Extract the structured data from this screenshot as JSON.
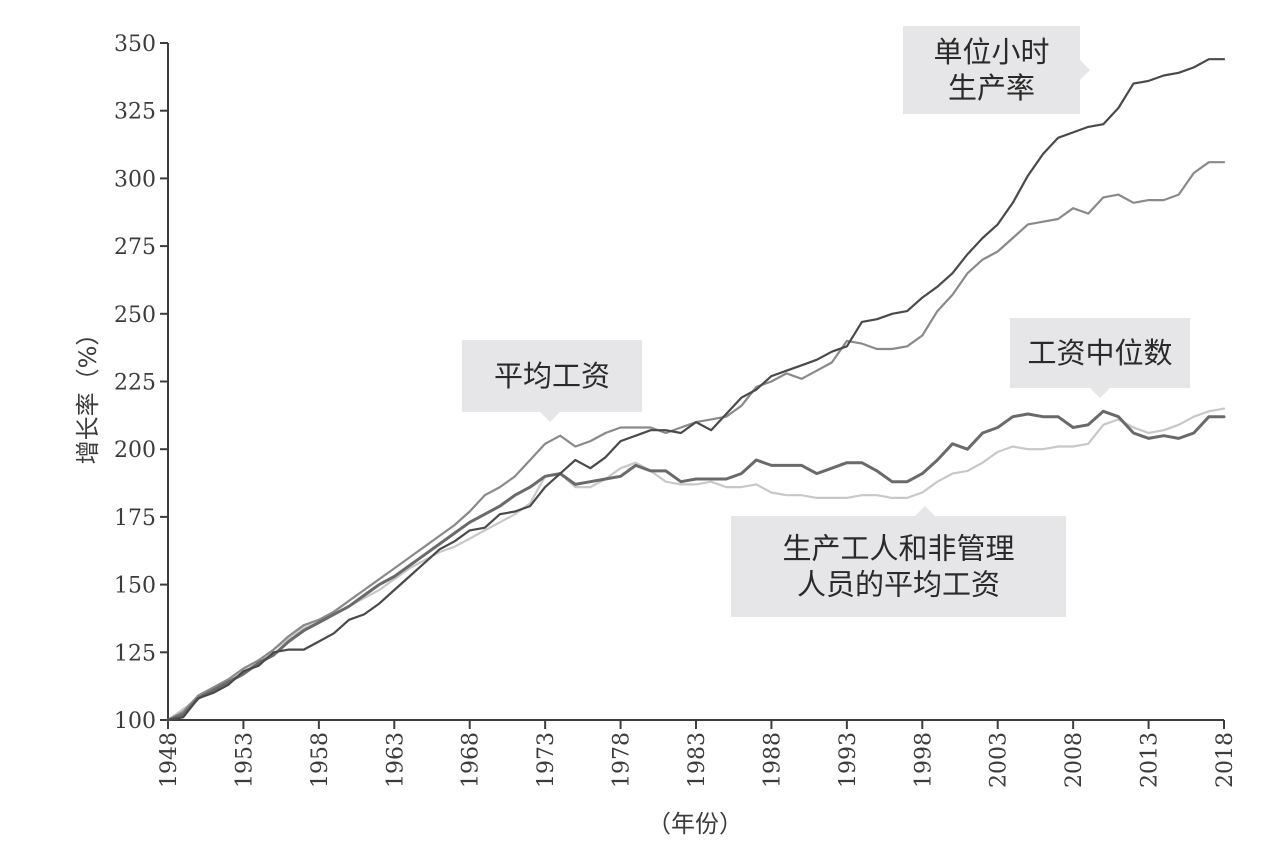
{
  "chart_data": {
    "type": "line",
    "title": "",
    "xlabel": "（年份）",
    "ylabel": "增长率（%）",
    "xlim": [
      1948,
      2018
    ],
    "ylim": [
      100,
      350
    ],
    "x_ticks": [
      1948,
      1953,
      1958,
      1963,
      1968,
      1973,
      1978,
      1983,
      1988,
      1993,
      1998,
      2003,
      2008,
      2013,
      2018
    ],
    "y_ticks": [
      100,
      125,
      150,
      175,
      200,
      225,
      250,
      275,
      300,
      325,
      350
    ],
    "grid": false,
    "legend": "none",
    "annotations": [
      {
        "lines": [
          "单位小时",
          "生产率"
        ],
        "series": "productivity"
      },
      {
        "lines": [
          "平均工资"
        ],
        "series": "avg_wage"
      },
      {
        "lines": [
          "工资中位数"
        ],
        "series": "median_wage"
      },
      {
        "lines": [
          "生产工人和非管理",
          "人员的平均工资"
        ],
        "series": "production_wage"
      }
    ],
    "series": [
      {
        "id": "productivity",
        "color": "#4a4a4a",
        "points": [
          [
            1948,
            100
          ],
          [
            1949,
            101
          ],
          [
            1950,
            108
          ],
          [
            1951,
            110
          ],
          [
            1952,
            113
          ],
          [
            1953,
            118
          ],
          [
            1954,
            120
          ],
          [
            1955,
            125
          ],
          [
            1956,
            126
          ],
          [
            1957,
            126
          ],
          [
            1958,
            129
          ],
          [
            1959,
            132
          ],
          [
            1960,
            137
          ],
          [
            1961,
            139
          ],
          [
            1962,
            143
          ],
          [
            1963,
            148
          ],
          [
            1964,
            153
          ],
          [
            1965,
            158
          ],
          [
            1966,
            163
          ],
          [
            1967,
            166
          ],
          [
            1968,
            170
          ],
          [
            1969,
            171
          ],
          [
            1970,
            176
          ],
          [
            1971,
            177
          ],
          [
            1972,
            179
          ],
          [
            1973,
            186
          ],
          [
            1974,
            191
          ],
          [
            1975,
            196
          ],
          [
            1976,
            193
          ],
          [
            1977,
            197
          ],
          [
            1978,
            203
          ],
          [
            1979,
            205
          ],
          [
            1980,
            207
          ],
          [
            1981,
            207
          ],
          [
            1982,
            206
          ],
          [
            1983,
            210
          ],
          [
            1984,
            207
          ],
          [
            1985,
            213
          ],
          [
            1986,
            219
          ],
          [
            1987,
            222
          ],
          [
            1988,
            227
          ],
          [
            1989,
            229
          ],
          [
            1990,
            231
          ],
          [
            1991,
            233
          ],
          [
            1992,
            236
          ],
          [
            1993,
            238
          ],
          [
            1994,
            247
          ],
          [
            1995,
            248
          ],
          [
            1996,
            250
          ],
          [
            1997,
            251
          ],
          [
            1998,
            256
          ],
          [
            1999,
            260
          ],
          [
            2000,
            265
          ],
          [
            2001,
            272
          ],
          [
            2002,
            278
          ],
          [
            2003,
            283
          ],
          [
            2004,
            291
          ],
          [
            2005,
            301
          ],
          [
            2006,
            309
          ],
          [
            2007,
            315
          ],
          [
            2008,
            317
          ],
          [
            2009,
            319
          ],
          [
            2010,
            320
          ],
          [
            2011,
            326
          ],
          [
            2012,
            335
          ],
          [
            2013,
            336
          ],
          [
            2014,
            338
          ],
          [
            2015,
            339
          ],
          [
            2016,
            341
          ],
          [
            2017,
            344
          ],
          [
            2018,
            344
          ]
        ]
      },
      {
        "id": "avg_wage",
        "color": "#8a8a8a",
        "points": [
          [
            1948,
            100
          ],
          [
            1949,
            103
          ],
          [
            1950,
            109
          ],
          [
            1951,
            112
          ],
          [
            1952,
            115
          ],
          [
            1953,
            119
          ],
          [
            1954,
            122
          ],
          [
            1955,
            126
          ],
          [
            1956,
            131
          ],
          [
            1957,
            135
          ],
          [
            1958,
            137
          ],
          [
            1959,
            140
          ],
          [
            1960,
            144
          ],
          [
            1961,
            148
          ],
          [
            1962,
            152
          ],
          [
            1963,
            156
          ],
          [
            1964,
            160
          ],
          [
            1965,
            164
          ],
          [
            1966,
            168
          ],
          [
            1967,
            172
          ],
          [
            1968,
            177
          ],
          [
            1969,
            183
          ],
          [
            1970,
            186
          ],
          [
            1971,
            190
          ],
          [
            1972,
            196
          ],
          [
            1973,
            202
          ],
          [
            1974,
            205
          ],
          [
            1975,
            201
          ],
          [
            1976,
            203
          ],
          [
            1977,
            206
          ],
          [
            1978,
            208
          ],
          [
            1979,
            208
          ],
          [
            1980,
            208
          ],
          [
            1981,
            206
          ],
          [
            1982,
            208
          ],
          [
            1983,
            210
          ],
          [
            1984,
            211
          ],
          [
            1985,
            212
          ],
          [
            1986,
            216
          ],
          [
            1987,
            223
          ],
          [
            1988,
            225
          ],
          [
            1989,
            228
          ],
          [
            1990,
            226
          ],
          [
            1991,
            229
          ],
          [
            1992,
            232
          ],
          [
            1993,
            240
          ],
          [
            1994,
            239
          ],
          [
            1995,
            237
          ],
          [
            1996,
            237
          ],
          [
            1997,
            238
          ],
          [
            1998,
            242
          ],
          [
            1999,
            251
          ],
          [
            2000,
            257
          ],
          [
            2001,
            265
          ],
          [
            2002,
            270
          ],
          [
            2003,
            273
          ],
          [
            2004,
            278
          ],
          [
            2005,
            283
          ],
          [
            2006,
            284
          ],
          [
            2007,
            285
          ],
          [
            2008,
            289
          ],
          [
            2009,
            287
          ],
          [
            2010,
            293
          ],
          [
            2011,
            294
          ],
          [
            2012,
            291
          ],
          [
            2013,
            292
          ],
          [
            2014,
            292
          ],
          [
            2015,
            294
          ],
          [
            2016,
            302
          ],
          [
            2017,
            306
          ],
          [
            2018,
            306
          ]
        ]
      },
      {
        "id": "median_wage",
        "color": "#6a6a6a",
        "points": [
          [
            1948,
            100
          ],
          [
            1949,
            102
          ],
          [
            1950,
            108
          ],
          [
            1951,
            111
          ],
          [
            1952,
            114
          ],
          [
            1953,
            117
          ],
          [
            1954,
            121
          ],
          [
            1955,
            124
          ],
          [
            1956,
            129
          ],
          [
            1957,
            133
          ],
          [
            1958,
            136
          ],
          [
            1959,
            139
          ],
          [
            1960,
            142
          ],
          [
            1961,
            146
          ],
          [
            1962,
            150
          ],
          [
            1963,
            153
          ],
          [
            1964,
            157
          ],
          [
            1965,
            161
          ],
          [
            1966,
            165
          ],
          [
            1967,
            169
          ],
          [
            1968,
            173
          ],
          [
            1969,
            176
          ],
          [
            1970,
            179
          ],
          [
            1971,
            183
          ],
          [
            1972,
            186
          ],
          [
            1973,
            190
          ],
          [
            1974,
            191
          ],
          [
            1975,
            187
          ],
          [
            1976,
            188
          ],
          [
            1977,
            189
          ],
          [
            1978,
            190
          ],
          [
            1979,
            194
          ],
          [
            1980,
            192
          ],
          [
            1981,
            192
          ],
          [
            1982,
            188
          ],
          [
            1983,
            189
          ],
          [
            1984,
            189
          ],
          [
            1985,
            189
          ],
          [
            1986,
            191
          ],
          [
            1987,
            196
          ],
          [
            1988,
            194
          ],
          [
            1989,
            194
          ],
          [
            1990,
            194
          ],
          [
            1991,
            191
          ],
          [
            1992,
            193
          ],
          [
            1993,
            195
          ],
          [
            1994,
            195
          ],
          [
            1995,
            192
          ],
          [
            1996,
            188
          ],
          [
            1997,
            188
          ],
          [
            1998,
            191
          ],
          [
            1999,
            196
          ],
          [
            2000,
            202
          ],
          [
            2001,
            200
          ],
          [
            2002,
            206
          ],
          [
            2003,
            208
          ],
          [
            2004,
            212
          ],
          [
            2005,
            213
          ],
          [
            2006,
            212
          ],
          [
            2007,
            212
          ],
          [
            2008,
            208
          ],
          [
            2009,
            209
          ],
          [
            2010,
            214
          ],
          [
            2011,
            212
          ],
          [
            2012,
            206
          ],
          [
            2013,
            204
          ],
          [
            2014,
            205
          ],
          [
            2015,
            204
          ],
          [
            2016,
            206
          ],
          [
            2017,
            212
          ],
          [
            2018,
            212
          ]
        ]
      },
      {
        "id": "production_wage",
        "color": "#c8c8c8",
        "points": [
          [
            1948,
            100
          ],
          [
            1949,
            104
          ],
          [
            1950,
            108
          ],
          [
            1951,
            111
          ],
          [
            1952,
            114
          ],
          [
            1953,
            118
          ],
          [
            1954,
            121
          ],
          [
            1955,
            126
          ],
          [
            1956,
            130
          ],
          [
            1957,
            134
          ],
          [
            1958,
            136
          ],
          [
            1959,
            139
          ],
          [
            1960,
            142
          ],
          [
            1961,
            145
          ],
          [
            1962,
            148
          ],
          [
            1963,
            152
          ],
          [
            1964,
            156
          ],
          [
            1965,
            159
          ],
          [
            1966,
            162
          ],
          [
            1967,
            164
          ],
          [
            1968,
            167
          ],
          [
            1969,
            170
          ],
          [
            1970,
            173
          ],
          [
            1971,
            176
          ],
          [
            1972,
            180
          ],
          [
            1973,
            190
          ],
          [
            1974,
            191
          ],
          [
            1975,
            186
          ],
          [
            1976,
            186
          ],
          [
            1977,
            189
          ],
          [
            1978,
            193
          ],
          [
            1979,
            195
          ],
          [
            1980,
            192
          ],
          [
            1981,
            188
          ],
          [
            1982,
            187
          ],
          [
            1983,
            187
          ],
          [
            1984,
            188
          ],
          [
            1985,
            186
          ],
          [
            1986,
            186
          ],
          [
            1987,
            187
          ],
          [
            1988,
            184
          ],
          [
            1989,
            183
          ],
          [
            1990,
            183
          ],
          [
            1991,
            182
          ],
          [
            1992,
            182
          ],
          [
            1993,
            182
          ],
          [
            1994,
            183
          ],
          [
            1995,
            183
          ],
          [
            1996,
            182
          ],
          [
            1997,
            182
          ],
          [
            1998,
            184
          ],
          [
            1999,
            188
          ],
          [
            2000,
            191
          ],
          [
            2001,
            192
          ],
          [
            2002,
            195
          ],
          [
            2003,
            199
          ],
          [
            2004,
            201
          ],
          [
            2005,
            200
          ],
          [
            2006,
            200
          ],
          [
            2007,
            201
          ],
          [
            2008,
            201
          ],
          [
            2009,
            202
          ],
          [
            2010,
            209
          ],
          [
            2011,
            211
          ],
          [
            2012,
            208
          ],
          [
            2013,
            206
          ],
          [
            2014,
            207
          ],
          [
            2015,
            209
          ],
          [
            2016,
            212
          ],
          [
            2017,
            214
          ],
          [
            2018,
            215
          ]
        ]
      }
    ]
  }
}
